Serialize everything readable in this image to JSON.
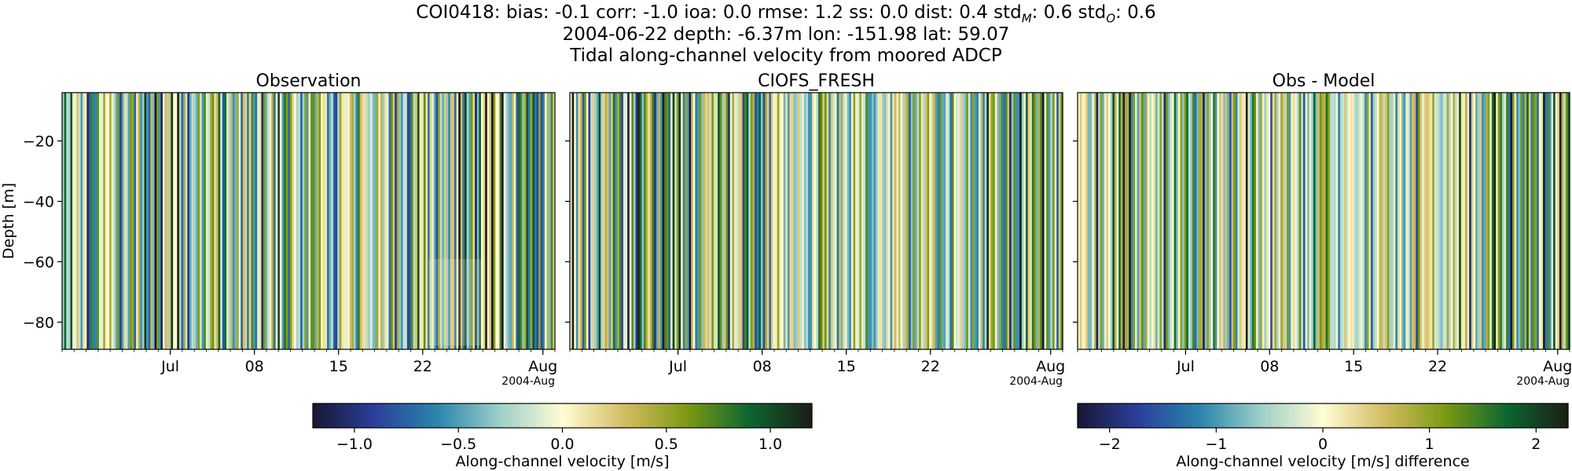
{
  "figure": {
    "title_lines": [
      "COI0418: bias: -0.1  corr: -1.0  ioa: 0.0  rmse: 1.2  ss: 0.0  dist: 0.4  std_M: 0.6  std_O: 0.6",
      "2004-06-22 depth: -6.37m lon: -151.98 lat: 59.07",
      "Tidal along-channel velocity from moored ADCP"
    ],
    "title_parts": {
      "head": "COI0418: bias: -0.1  corr: -1.0  ioa: 0.0  rmse: 1.2  ss: 0.0  dist: 0.4  std",
      "sub_m": "M",
      "mid": ": 0.6  std",
      "sub_o": "O",
      "tail": ": 0.6"
    }
  },
  "colors": {
    "colormap_stops": [
      "#171733",
      "#2b3f9c",
      "#2a86ac",
      "#9ecfc9",
      "#fffdd4",
      "#d4bc63",
      "#7b9a12",
      "#0c6631",
      "#1b1d15"
    ]
  },
  "chart_data": [
    {
      "type": "heatmap",
      "title": "Observation",
      "xlabel": "",
      "ylabel": "Depth [m]",
      "x_range": [
        "2004-06-22",
        "2004-08-02"
      ],
      "ylim": [
        -89,
        -4
      ],
      "yticks": [
        -20,
        -40,
        -60,
        -80
      ],
      "xtick_labels": [
        "Jul",
        "08",
        "15",
        "22",
        "Aug"
      ],
      "xtick_dates": [
        "2004-07-01",
        "2004-07-08",
        "2004-07-15",
        "2004-07-22",
        "2004-08-01"
      ],
      "x_offset_label": "2004-Aug",
      "pattern": "tidal vertical stripes, nearly uniform with depth",
      "clim": [
        -1.2,
        1.2
      ],
      "grid": false
    },
    {
      "type": "heatmap",
      "title": "CIOFS_FRESH",
      "xlabel": "",
      "ylabel": "",
      "x_range": [
        "2004-06-22",
        "2004-08-02"
      ],
      "ylim": [
        -89,
        -4
      ],
      "xtick_labels": [
        "Jul",
        "08",
        "15",
        "22",
        "Aug"
      ],
      "xtick_dates": [
        "2004-07-01",
        "2004-07-08",
        "2004-07-15",
        "2004-07-22",
        "2004-08-01"
      ],
      "x_offset_label": "2004-Aug",
      "pattern": "tidal vertical stripes, uniform with depth",
      "clim": [
        -1.2,
        1.2
      ],
      "grid": false
    },
    {
      "type": "heatmap",
      "title": "Obs - Model",
      "xlabel": "",
      "ylabel": "",
      "x_range": [
        "2004-06-22",
        "2004-08-02"
      ],
      "ylim": [
        -89,
        -4
      ],
      "xtick_labels": [
        "Jul",
        "08",
        "15",
        "22",
        "Aug"
      ],
      "xtick_dates": [
        "2004-07-01",
        "2004-07-08",
        "2004-07-15",
        "2004-07-22",
        "2004-08-01"
      ],
      "x_offset_label": "2004-Aug",
      "pattern": "tidal vertical stripes of the difference",
      "clim": [
        -2.3,
        2.3
      ],
      "grid": false
    }
  ],
  "colorbars": [
    {
      "label": "Along-channel velocity [m/s]",
      "range": [
        -1.2,
        1.2
      ],
      "ticks": [
        -1.0,
        -0.5,
        0.0,
        0.5,
        1.0
      ],
      "tick_labels": [
        "−1.0",
        "−0.5",
        "0.0",
        "0.5",
        "1.0"
      ]
    },
    {
      "label": "Along-channel velocity [m/s] difference",
      "range": [
        -2.3,
        2.3
      ],
      "ticks": [
        -2,
        -1,
        0,
        1,
        2
      ],
      "tick_labels": [
        "−2",
        "−1",
        "0",
        "1",
        "2"
      ]
    }
  ],
  "ytick_labels": [
    "−20",
    "−40",
    "−60",
    "−80"
  ]
}
